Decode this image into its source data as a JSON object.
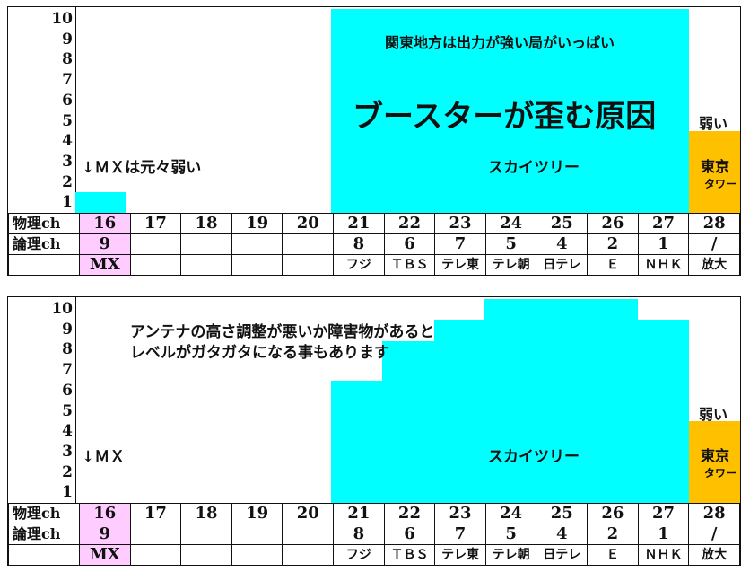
{
  "colors": {
    "skytree": "#00ffff",
    "tokyo_tower": "#ffc000",
    "mx_cell": "#ffccff",
    "curve": "#bbbbbb"
  },
  "table": {
    "row_labels": [
      "物理ch",
      "論理ch",
      ""
    ],
    "physical": [
      "16",
      "17",
      "18",
      "19",
      "20",
      "21",
      "22",
      "23",
      "24",
      "25",
      "26",
      "27",
      "28"
    ],
    "logical": [
      "9",
      "",
      "",
      "",
      "",
      "8",
      "6",
      "7",
      "5",
      "4",
      "2",
      "1",
      "/"
    ],
    "stations": [
      "MX",
      "",
      "",
      "",
      "",
      "フジ",
      "ＴＢＳ",
      "テレ東",
      "テレ朝",
      "日テレ",
      "Ｅ",
      "ＮＨＫ",
      "放大"
    ]
  },
  "y_ticks": [
    "10",
    "9",
    "8",
    "7",
    "6",
    "5",
    "4",
    "3",
    "2",
    "1"
  ],
  "chart_data": [
    {
      "type": "bar",
      "categories": [
        "16",
        "17",
        "18",
        "19",
        "20",
        "21",
        "22",
        "23",
        "24",
        "25",
        "26",
        "27",
        "28"
      ],
      "values": [
        1,
        0,
        0,
        0,
        0,
        10,
        10,
        10,
        10,
        10,
        10,
        10,
        4
      ],
      "ylim": [
        0,
        10
      ],
      "annotations": {
        "top_note": "関東地方は出力が強い局がいっぱい",
        "headline": "ブースターが歪む原因",
        "mx_note": "↓ＭＸは元々弱い",
        "skytree": "スカイツリー",
        "weak": "弱い",
        "tower_1": "東京",
        "tower_2": "タワー"
      }
    },
    {
      "type": "bar",
      "categories": [
        "16",
        "17",
        "18",
        "19",
        "20",
        "21",
        "22",
        "23",
        "24",
        "25",
        "26",
        "27",
        "28"
      ],
      "values": [
        0,
        0,
        0,
        0,
        0,
        6,
        8,
        9,
        10,
        10,
        10,
        9,
        4
      ],
      "ylim": [
        0,
        10
      ],
      "annotations": {
        "note_line1": "アンテナの高さ調整が悪いか障害物があると",
        "note_line2": "レベルがガタガタになる事もあります",
        "mx_note": "↓ＭＸ",
        "skytree": "スカイツリー",
        "weak": "弱い",
        "tower_1": "東京",
        "tower_2": "タワー"
      }
    }
  ]
}
